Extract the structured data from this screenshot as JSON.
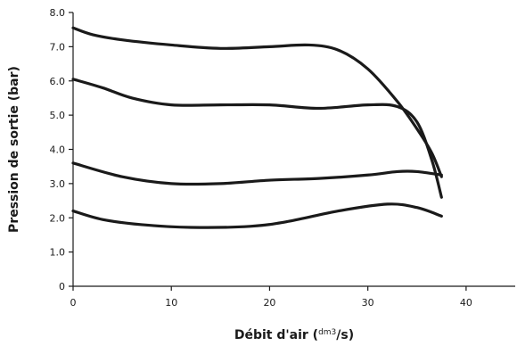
{
  "chart_data": {
    "type": "line",
    "title": "",
    "xlabel": "Débit d'air",
    "xlabel_unit_open": " (",
    "xlabel_unit": "dm3",
    "xlabel_unit_close": "/s)",
    "ylabel": "Pression de sortie (bar)",
    "xlim": [
      0,
      45
    ],
    "ylim": [
      0,
      8
    ],
    "xticks": [
      0,
      10,
      20,
      30,
      40
    ],
    "xtick_labels": [
      "0",
      "10",
      "20",
      "30",
      "40"
    ],
    "yticks": [
      0,
      1,
      2,
      3,
      4,
      5,
      6,
      7,
      8
    ],
    "ytick_labels": [
      "0",
      "1.0",
      "2.0",
      "3.0",
      "4.0",
      "5.0",
      "6.0",
      "7.0",
      "8.0"
    ],
    "grid": false,
    "series": [
      {
        "x": [
          0,
          2,
          5,
          10,
          15,
          20,
          24,
          27,
          30,
          33,
          35,
          36.5,
          37.5
        ],
        "y": [
          7.55,
          7.35,
          7.2,
          7.05,
          6.95,
          7.0,
          7.05,
          6.9,
          6.35,
          5.4,
          4.6,
          3.9,
          3.2
        ]
      },
      {
        "x": [
          0,
          3,
          6,
          10,
          15,
          20,
          25,
          30,
          33,
          35,
          36.5,
          37.5
        ],
        "y": [
          6.05,
          5.8,
          5.5,
          5.3,
          5.3,
          5.3,
          5.2,
          5.3,
          5.25,
          4.8,
          3.7,
          2.6
        ]
      },
      {
        "x": [
          0,
          5,
          10,
          15,
          20,
          25,
          30,
          33,
          35,
          37.5
        ],
        "y": [
          3.6,
          3.2,
          3.0,
          3.0,
          3.1,
          3.15,
          3.25,
          3.35,
          3.35,
          3.25
        ]
      },
      {
        "x": [
          0,
          3,
          7,
          12,
          18,
          22,
          27,
          32,
          35,
          37.5
        ],
        "y": [
          2.2,
          1.95,
          1.8,
          1.72,
          1.75,
          1.9,
          2.2,
          2.4,
          2.3,
          2.05
        ]
      }
    ]
  }
}
